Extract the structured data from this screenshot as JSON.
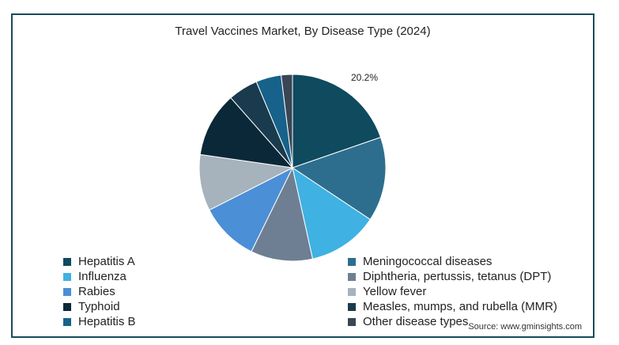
{
  "chart_data": {
    "type": "pie",
    "title": "Travel Vaccines Market, By Disease Type (2024)",
    "slices": [
      {
        "name": "Hepatitis A",
        "value": 20.2,
        "color": "#0f4a5e",
        "label": "20.2%"
      },
      {
        "name": "Meningococcal diseases",
        "value": 15.0,
        "color": "#2d6e8e",
        "label": ""
      },
      {
        "name": "Influenza",
        "value": 12.5,
        "color": "#3fb1e3",
        "label": ""
      },
      {
        "name": "Diphtheria, pertussis, tetanus (DPT)",
        "value": 11.0,
        "color": "#6e7f93",
        "label": ""
      },
      {
        "name": "Rabies",
        "value": 10.5,
        "color": "#4b8fd6",
        "label": ""
      },
      {
        "name": "Yellow fever",
        "value": 10.0,
        "color": "#a6b2bc",
        "label": ""
      },
      {
        "name": "Typhoid",
        "value": 11.5,
        "color": "#0b2838",
        "label": ""
      },
      {
        "name": "Measles, mumps, and rubella (MMR)",
        "value": 5.3,
        "color": "#193b4d",
        "label": ""
      },
      {
        "name": "Hepatitis B",
        "value": 4.5,
        "color": "#17628a",
        "label": ""
      },
      {
        "name": "Other disease types",
        "value": 2.0,
        "color": "#3a4556",
        "label": ""
      }
    ],
    "legend_position": "bottom"
  },
  "source": "Source: www.gminsights.com"
}
